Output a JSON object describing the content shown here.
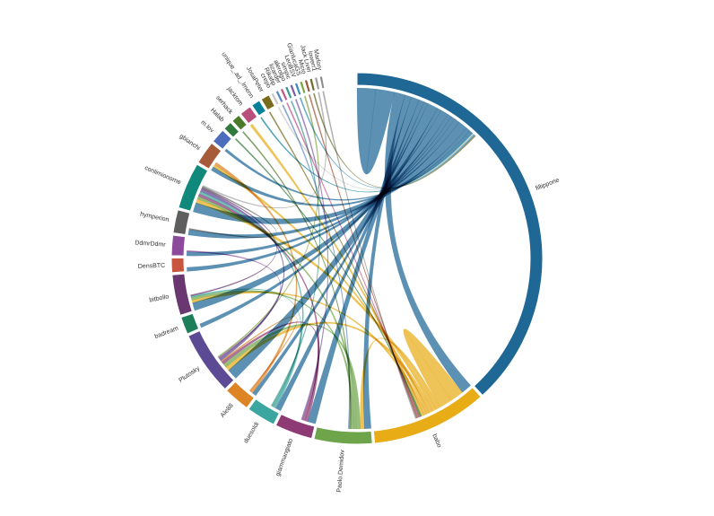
{
  "chart_data": {
    "type": "chord",
    "title": "",
    "groups": [
      {
        "name": "fillippone",
        "color": "#1f6795",
        "weight": 151
      },
      {
        "name": "babo",
        "color": "#e8ac16",
        "weight": 40
      },
      {
        "name": "Paolo.Demidov",
        "color": "#6fa54a",
        "weight": 20
      },
      {
        "name": "giammangiato",
        "color": "#8e3a74",
        "weight": 13
      },
      {
        "name": "duesoldi",
        "color": "#3ba6a0",
        "weight": 10
      },
      {
        "name": "Ale88",
        "color": "#dd8425",
        "weight": 9
      },
      {
        "name": "Plutosky",
        "color": "#5d4a95",
        "weight": 22
      },
      {
        "name": "badream",
        "color": "#1e7d5a",
        "weight": 6
      },
      {
        "name": "bitbollo",
        "color": "#6b3770",
        "weight": 14
      },
      {
        "name": "DensBTC",
        "color": "#c8553d",
        "weight": 5
      },
      {
        "name": "DdmrDdmr",
        "color": "#8b4a9c",
        "weight": 7
      },
      {
        "name": "hymperion",
        "color": "#5f5f5f",
        "weight": 8
      },
      {
        "name": "conlimionome",
        "color": "#11887c",
        "weight": 16
      },
      {
        "name": "gbianchi",
        "color": "#a65b3a",
        "weight": 8
      },
      {
        "name": "m.lov",
        "color": "#4b6dbb",
        "weight": 5
      },
      {
        "name": "Halab",
        "color": "#2f7a3c",
        "weight": 3
      },
      {
        "name": "serhack",
        "color": "#4a7a2a",
        "weight": 3
      },
      {
        "name": "jacktom",
        "color": "#b94f7d",
        "weight": 4
      },
      {
        "name": "unique_.ad_.lmenn",
        "color": "#07809a",
        "weight": 3
      },
      {
        "name": "JosaPeter",
        "color": "#7a6a1c",
        "weight": 3
      },
      {
        "name": "crepo",
        "color": "#c7c7c7",
        "weight": 1
      },
      {
        "name": "Rikafip",
        "color": "#5b86c5",
        "weight": 1
      },
      {
        "name": "lizarder",
        "color": "#c0558b",
        "weight": 1
      },
      {
        "name": "alerolgo",
        "color": "#3a9b8a",
        "weight": 1
      },
      {
        "name": "simpic",
        "color": "#7b5aa6",
        "weight": 1
      },
      {
        "name": "LeoBSV",
        "color": "#3a8fb8",
        "weight": 1
      },
      {
        "name": "GianlucaGS",
        "color": "#7fa33c",
        "weight": 1
      },
      {
        "name": "Micio",
        "color": "#a0563b",
        "weight": 1
      },
      {
        "name": "Jack Liver",
        "color": "#6b6b2a",
        "weight": 1
      },
      {
        "name": "lowerr1",
        "color": "#9e9e9e",
        "weight": 1
      },
      {
        "name": "Marlory",
        "color": "#8e8e8e",
        "weight": 1
      }
    ],
    "flows": [
      [
        "fillippone",
        "fillippone",
        14
      ],
      [
        "fillippone",
        "babo",
        8
      ],
      [
        "fillippone",
        "Paolo.Demidov",
        5
      ],
      [
        "fillippone",
        "giammangiato",
        6
      ],
      [
        "fillippone",
        "duesoldi",
        4
      ],
      [
        "fillippone",
        "Ale88",
        3
      ],
      [
        "fillippone",
        "Plutosky",
        8
      ],
      [
        "fillippone",
        "badream",
        3
      ],
      [
        "fillippone",
        "bitbollo",
        6
      ],
      [
        "fillippone",
        "DensBTC",
        3
      ],
      [
        "fillippone",
        "DdmrDdmr",
        3
      ],
      [
        "fillippone",
        "hymperion",
        4
      ],
      [
        "fillippone",
        "conlimionome",
        7
      ],
      [
        "fillippone",
        "gbianchi",
        3
      ],
      [
        "fillippone",
        "m.lov",
        2
      ],
      [
        "babo",
        "babo",
        10
      ],
      [
        "babo",
        "Paolo.Demidov",
        3
      ],
      [
        "babo",
        "conlimionome",
        3
      ],
      [
        "babo",
        "Plutosky",
        3
      ],
      [
        "babo",
        "gbianchi",
        2
      ],
      [
        "babo",
        "bitbollo",
        2
      ],
      [
        "babo",
        "jacktom",
        2
      ],
      [
        "Paolo.Demidov",
        "Plutosky",
        3
      ],
      [
        "Paolo.Demidov",
        "conlimionome",
        2
      ],
      [
        "Paolo.Demidov",
        "bitbollo",
        2
      ],
      [
        "giammangiato",
        "conlimionome",
        2
      ],
      [
        "giammangiato",
        "Plutosky",
        2
      ],
      [
        "duesoldi",
        "conlimionome",
        2
      ],
      [
        "duesoldi",
        "bitbollo",
        1
      ],
      [
        "Ale88",
        "gbianchi",
        2
      ],
      [
        "Ale88",
        "Plutosky",
        1
      ],
      [
        "Plutosky",
        "conlimionome",
        2
      ],
      [
        "bitbollo",
        "conlimionome",
        1
      ],
      [
        "hymperion",
        "conlimionome",
        1
      ],
      [
        "DdmrDdmr",
        "Plutosky",
        1
      ],
      [
        "Halab",
        "babo",
        1
      ],
      [
        "serhack",
        "Paolo.Demidov",
        1
      ],
      [
        "unique_.ad_.lmenn",
        "fillippone",
        1
      ],
      [
        "JosaPeter",
        "babo",
        1
      ],
      [
        "crepo",
        "fillippone",
        1
      ],
      [
        "Rikafip",
        "Paolo.Demidov",
        1
      ],
      [
        "lizarder",
        "babo",
        1
      ],
      [
        "alerolgo",
        "duesoldi",
        1
      ],
      [
        "simpic",
        "giammangiato",
        1
      ],
      [
        "LeoBSV",
        "fillippone",
        1
      ],
      [
        "GianlucaGS",
        "Plutosky",
        1
      ],
      [
        "Micio",
        "babo",
        1
      ],
      [
        "Jack Liver",
        "fillippone",
        1
      ],
      [
        "lowerr1",
        "conlimionome",
        1
      ],
      [
        "Marlory",
        "babo",
        1
      ]
    ]
  }
}
